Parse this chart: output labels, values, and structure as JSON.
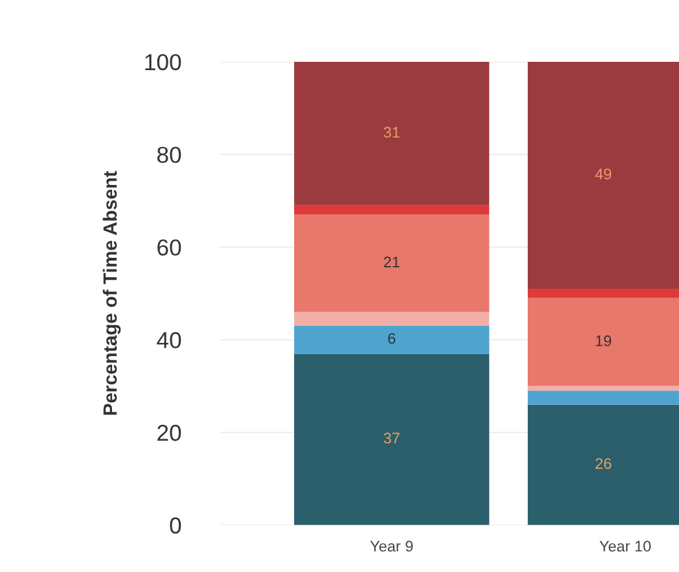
{
  "chart_data": {
    "type": "bar",
    "stacked": true,
    "ylabel": "Percentage of Time Absent",
    "categories": [
      "Year 9",
      "Year 10"
    ],
    "ylim": [
      0,
      100
    ],
    "yticks": [
      0,
      20,
      40,
      60,
      80,
      100
    ],
    "grid": "y",
    "series": [
      {
        "color": "#2a5f6b",
        "values": [
          37,
          26
        ],
        "value_labels": [
          "37",
          "26"
        ]
      },
      {
        "color": "#4fa3cf",
        "values": [
          6,
          3
        ],
        "value_labels": [
          "6",
          null
        ]
      },
      {
        "color": "#f0b0a8",
        "values": [
          3,
          1
        ],
        "value_labels": [
          null,
          null
        ]
      },
      {
        "color": "#e8776c",
        "values": [
          21,
          19
        ],
        "value_labels": [
          "21",
          "19"
        ]
      },
      {
        "color": "#e0393a",
        "values": [
          2,
          2
        ],
        "value_labels": [
          null,
          null
        ]
      },
      {
        "color": "#9b3b3f",
        "values": [
          31,
          49
        ],
        "value_labels": [
          "31",
          "49"
        ]
      }
    ]
  }
}
